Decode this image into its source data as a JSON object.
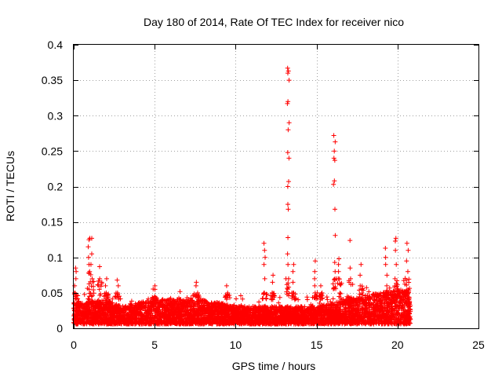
{
  "chart_data": {
    "type": "scatter",
    "title": "Day 180 of 2014, Rate Of TEC Index for receiver nico",
    "xlabel": "GPS time / hours",
    "ylabel": "ROTI / TECUs",
    "xlim": [
      0,
      25
    ],
    "ylim": [
      0,
      0.4
    ],
    "xticks": [
      0,
      5,
      10,
      15,
      20,
      25
    ],
    "yticks": [
      0,
      0.05,
      0.1,
      0.15,
      0.2,
      0.25,
      0.3,
      0.35,
      0.4
    ],
    "xtick_labels": [
      "0",
      "5",
      "10",
      "15",
      "20",
      "25"
    ],
    "ytick_labels": [
      "0",
      "0.05",
      "0.1",
      "0.15",
      "0.2",
      "0.25",
      "0.3",
      "0.35",
      "0.4"
    ],
    "grid": true,
    "marker": "+",
    "color": "#ff0000",
    "data_end_hour": 20.8,
    "baseline": [
      {
        "x": 0.0,
        "y": 0.03
      },
      {
        "x": 2.0,
        "y": 0.035
      },
      {
        "x": 3.0,
        "y": 0.025
      },
      {
        "x": 5.0,
        "y": 0.035
      },
      {
        "x": 8.0,
        "y": 0.035
      },
      {
        "x": 10.0,
        "y": 0.025
      },
      {
        "x": 12.0,
        "y": 0.025
      },
      {
        "x": 15.0,
        "y": 0.025
      },
      {
        "x": 17.0,
        "y": 0.035
      },
      {
        "x": 19.0,
        "y": 0.045
      },
      {
        "x": 20.8,
        "y": 0.05
      }
    ],
    "spikes": [
      {
        "x": 0.1,
        "y": [
          0.05,
          0.06,
          0.07,
          0.08,
          0.085
        ]
      },
      {
        "x": 0.95,
        "y": [
          0.08,
          0.09,
          0.1,
          0.115,
          0.125,
          0.127
        ]
      },
      {
        "x": 1.1,
        "y": [
          0.07,
          0.09,
          0.105,
          0.127
        ]
      },
      {
        "x": 1.6,
        "y": [
          0.07,
          0.087
        ]
      },
      {
        "x": 2.0,
        "y": [
          0.05,
          0.06,
          0.07
        ]
      },
      {
        "x": 2.7,
        "y": [
          0.05,
          0.06,
          0.068
        ]
      },
      {
        "x": 5.0,
        "y": [
          0.045,
          0.055,
          0.06
        ]
      },
      {
        "x": 7.6,
        "y": [
          0.05,
          0.06,
          0.065
        ]
      },
      {
        "x": 9.5,
        "y": [
          0.05,
          0.06
        ]
      },
      {
        "x": 11.8,
        "y": [
          0.05,
          0.07,
          0.09,
          0.1,
          0.11,
          0.12
        ]
      },
      {
        "x": 12.3,
        "y": [
          0.05,
          0.065,
          0.075
        ]
      },
      {
        "x": 13.25,
        "y": [
          0.07,
          0.09,
          0.105,
          0.128,
          0.168,
          0.175,
          0.2,
          0.207,
          0.24,
          0.248,
          0.28,
          0.29,
          0.317,
          0.32,
          0.35,
          0.36,
          0.363,
          0.367
        ]
      },
      {
        "x": 13.6,
        "y": [
          0.05,
          0.065,
          0.08,
          0.09
        ]
      },
      {
        "x": 14.9,
        "y": [
          0.05,
          0.06,
          0.07,
          0.08,
          0.095
        ]
      },
      {
        "x": 15.3,
        "y": [
          0.05,
          0.06
        ]
      },
      {
        "x": 16.1,
        "y": [
          0.07,
          0.08,
          0.093,
          0.131,
          0.168,
          0.203,
          0.208,
          0.237,
          0.24,
          0.25,
          0.263,
          0.272
        ]
      },
      {
        "x": 16.4,
        "y": [
          0.07,
          0.08,
          0.09,
          0.098
        ]
      },
      {
        "x": 17.1,
        "y": [
          0.07,
          0.085,
          0.124
        ]
      },
      {
        "x": 17.7,
        "y": [
          0.06,
          0.075,
          0.09
        ]
      },
      {
        "x": 19.3,
        "y": [
          0.06,
          0.075,
          0.09,
          0.1,
          0.113
        ]
      },
      {
        "x": 19.9,
        "y": [
          0.07,
          0.09,
          0.11,
          0.123,
          0.127
        ]
      },
      {
        "x": 20.6,
        "y": [
          0.08,
          0.095,
          0.11,
          0.12
        ]
      }
    ]
  }
}
